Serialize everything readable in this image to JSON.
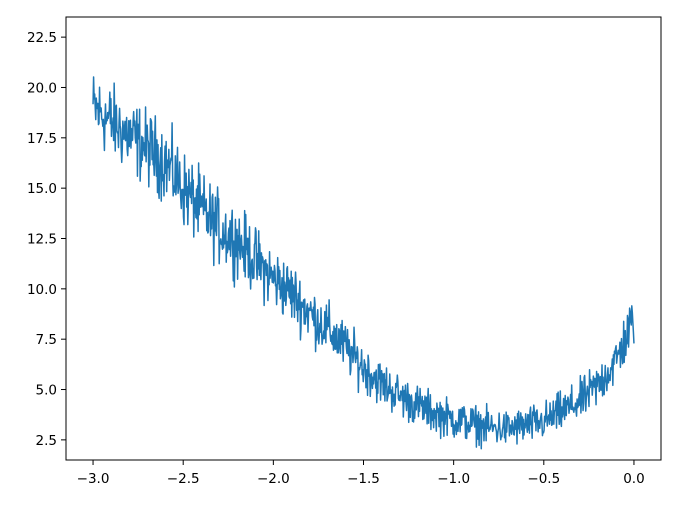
{
  "chart_data": {
    "type": "line",
    "title": "",
    "xlabel": "",
    "ylabel": "",
    "xlim": [
      -3.15,
      0.15
    ],
    "ylim": [
      1.5,
      23.5
    ],
    "grid": false,
    "legend": "none",
    "xticks": [
      -3.0,
      -2.5,
      -2.0,
      -1.5,
      -1.0,
      -0.5,
      0.0
    ],
    "xtick_labels": [
      "−3.0",
      "−2.5",
      "−2.0",
      "−1.5",
      "−1.0",
      "−0.5",
      "0.0"
    ],
    "yticks": [
      2.5,
      5.0,
      7.5,
      10.0,
      12.5,
      15.0,
      17.5,
      20.0,
      22.5
    ],
    "ytick_labels": [
      "2.5",
      "5.0",
      "7.5",
      "10.0",
      "12.5",
      "15.0",
      "17.5",
      "20.0",
      "22.5"
    ],
    "series": [
      {
        "color": "#1f77b4",
        "x": [
          -3.0,
          -2.9,
          -2.8,
          -2.7,
          -2.6,
          -2.5,
          -2.4,
          -2.3,
          -2.2,
          -2.1,
          -2.0,
          -1.9,
          -1.8,
          -1.7,
          -1.6,
          -1.5,
          -1.4,
          -1.3,
          -1.2,
          -1.1,
          -1.0,
          -0.9,
          -0.8,
          -0.7,
          -0.6,
          -0.5,
          -0.4,
          -0.3,
          -0.2,
          -0.1,
          0.0
        ],
        "y": [
          19.0,
          18.3,
          17.6,
          17.0,
          16.3,
          15.0,
          13.9,
          13.0,
          12.4,
          11.4,
          10.5,
          9.8,
          8.8,
          8.0,
          7.1,
          6.1,
          5.3,
          4.7,
          4.2,
          3.8,
          3.5,
          3.3,
          3.1,
          3.05,
          3.2,
          3.4,
          3.9,
          4.4,
          5.2,
          6.4,
          8.5
        ],
        "noise_amplitude": 1.3,
        "samples": 1000
      }
    ]
  }
}
